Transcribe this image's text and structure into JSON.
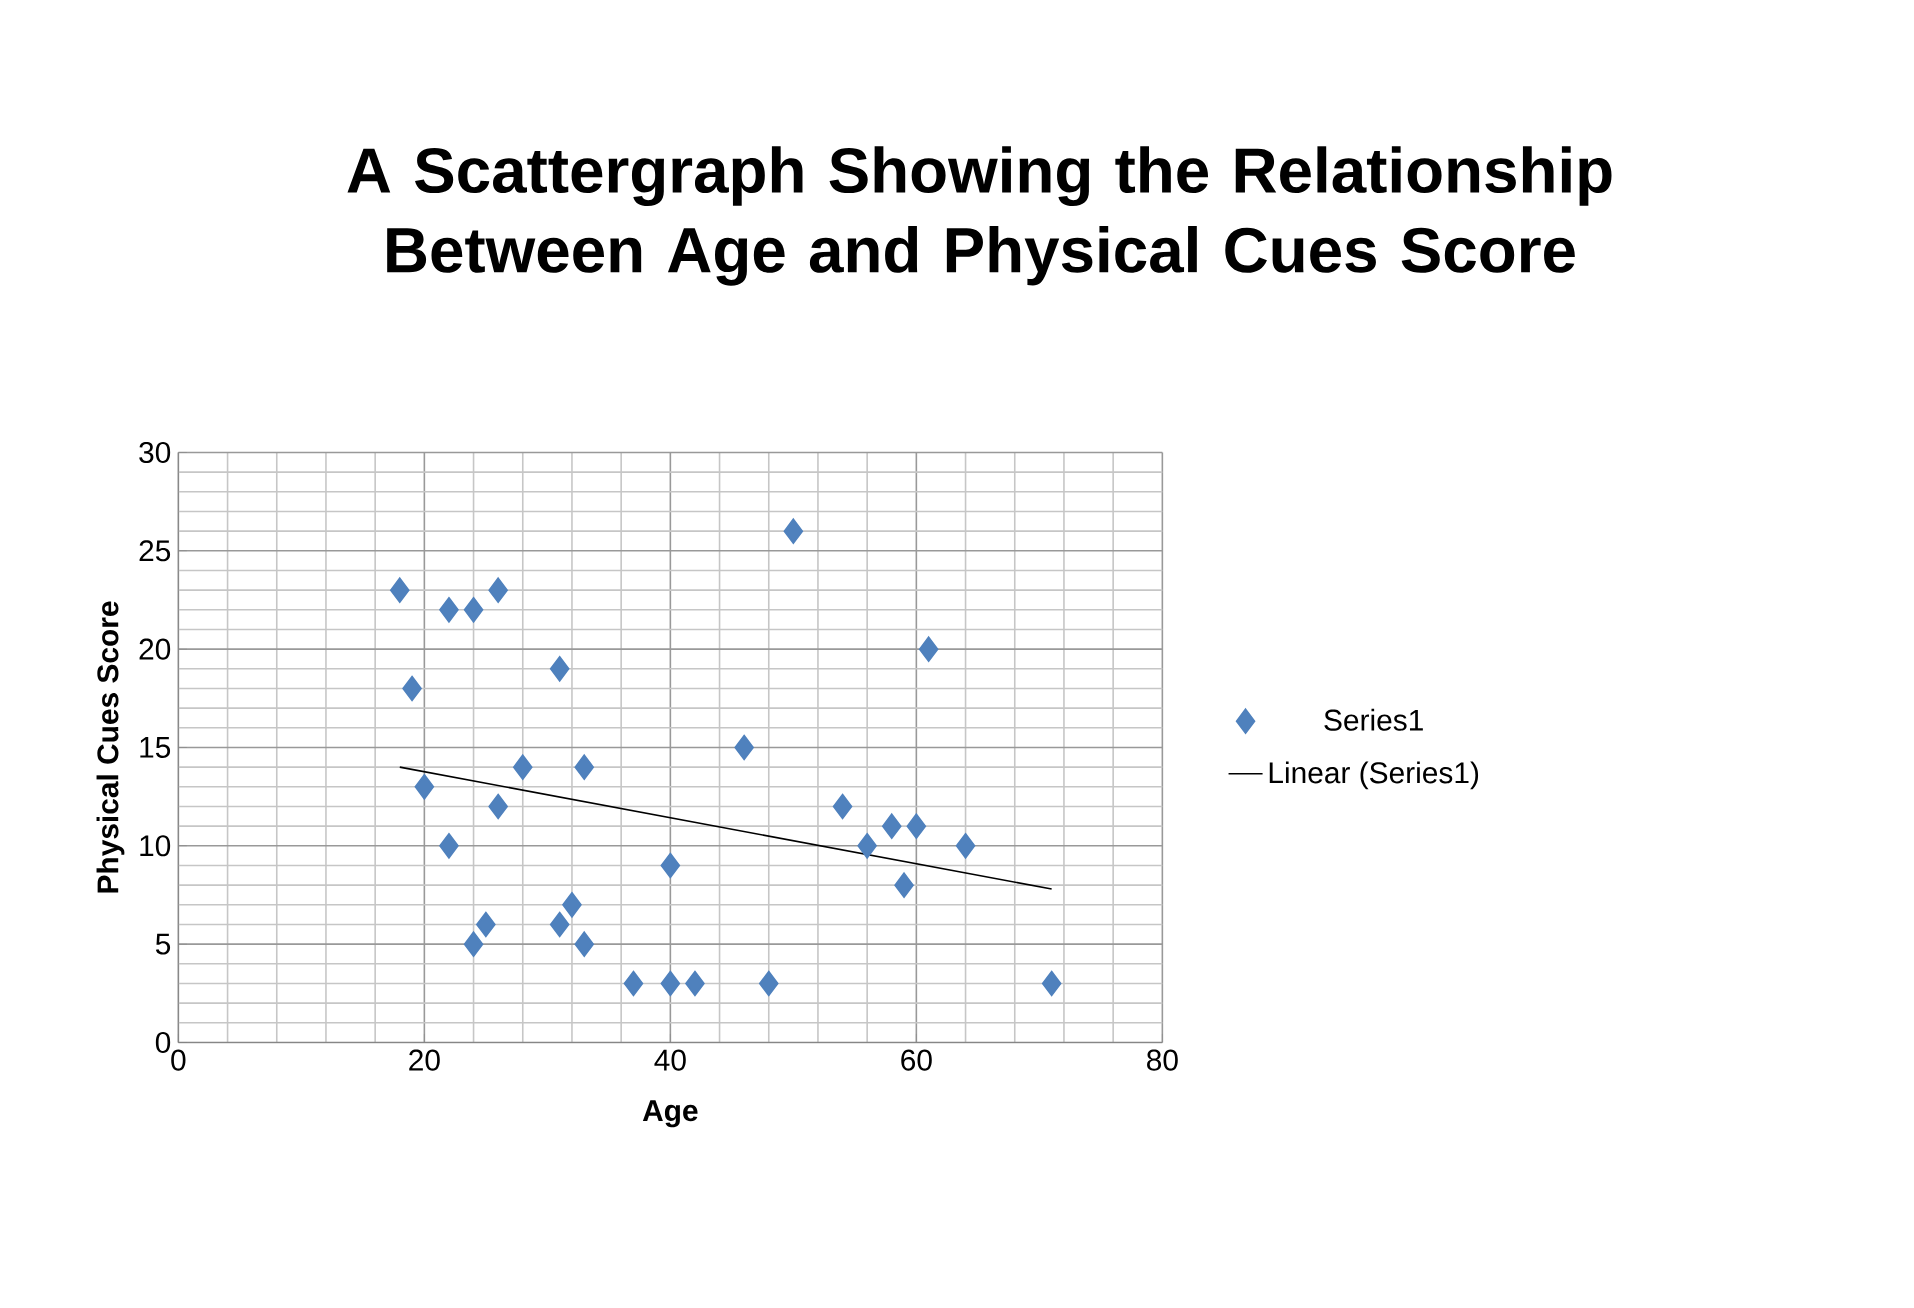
{
  "chart_data": {
    "type": "scatter",
    "title": "A Scattergraph Showing the Relationship Between Age and Physical Cues Score",
    "xlabel": "Age",
    "ylabel": "Physical Cues Score",
    "xlim": [
      0,
      80
    ],
    "xticks": [
      0,
      20,
      40,
      60,
      80
    ],
    "ylim": [
      0,
      30
    ],
    "yticks": [
      0,
      5,
      10,
      15,
      20,
      25,
      30
    ],
    "grid": true,
    "legend": "right",
    "marker": "diamond",
    "series": [
      {
        "name": "Series1",
        "color": "#4f81bd",
        "x": [
          18,
          19,
          20,
          22,
          22,
          24,
          24,
          25,
          26,
          26,
          28,
          31,
          31,
          32,
          33,
          33,
          37,
          40,
          40,
          42,
          46,
          48,
          50,
          54,
          56,
          58,
          59,
          60,
          61,
          64,
          71
        ],
        "values": [
          23,
          18,
          13,
          22,
          10,
          22,
          5,
          6,
          23,
          12,
          14,
          19,
          6,
          7,
          14,
          5,
          3,
          9,
          3,
          3,
          15,
          3,
          26,
          12,
          10,
          11,
          8,
          11,
          20,
          10,
          3
        ]
      },
      {
        "name": "Linear (Series1)",
        "type": "line",
        "color": "#000000",
        "marker": "none",
        "line_style": "solid",
        "x": [
          18,
          71
        ],
        "values": [
          14,
          7.8
        ]
      }
    ]
  }
}
